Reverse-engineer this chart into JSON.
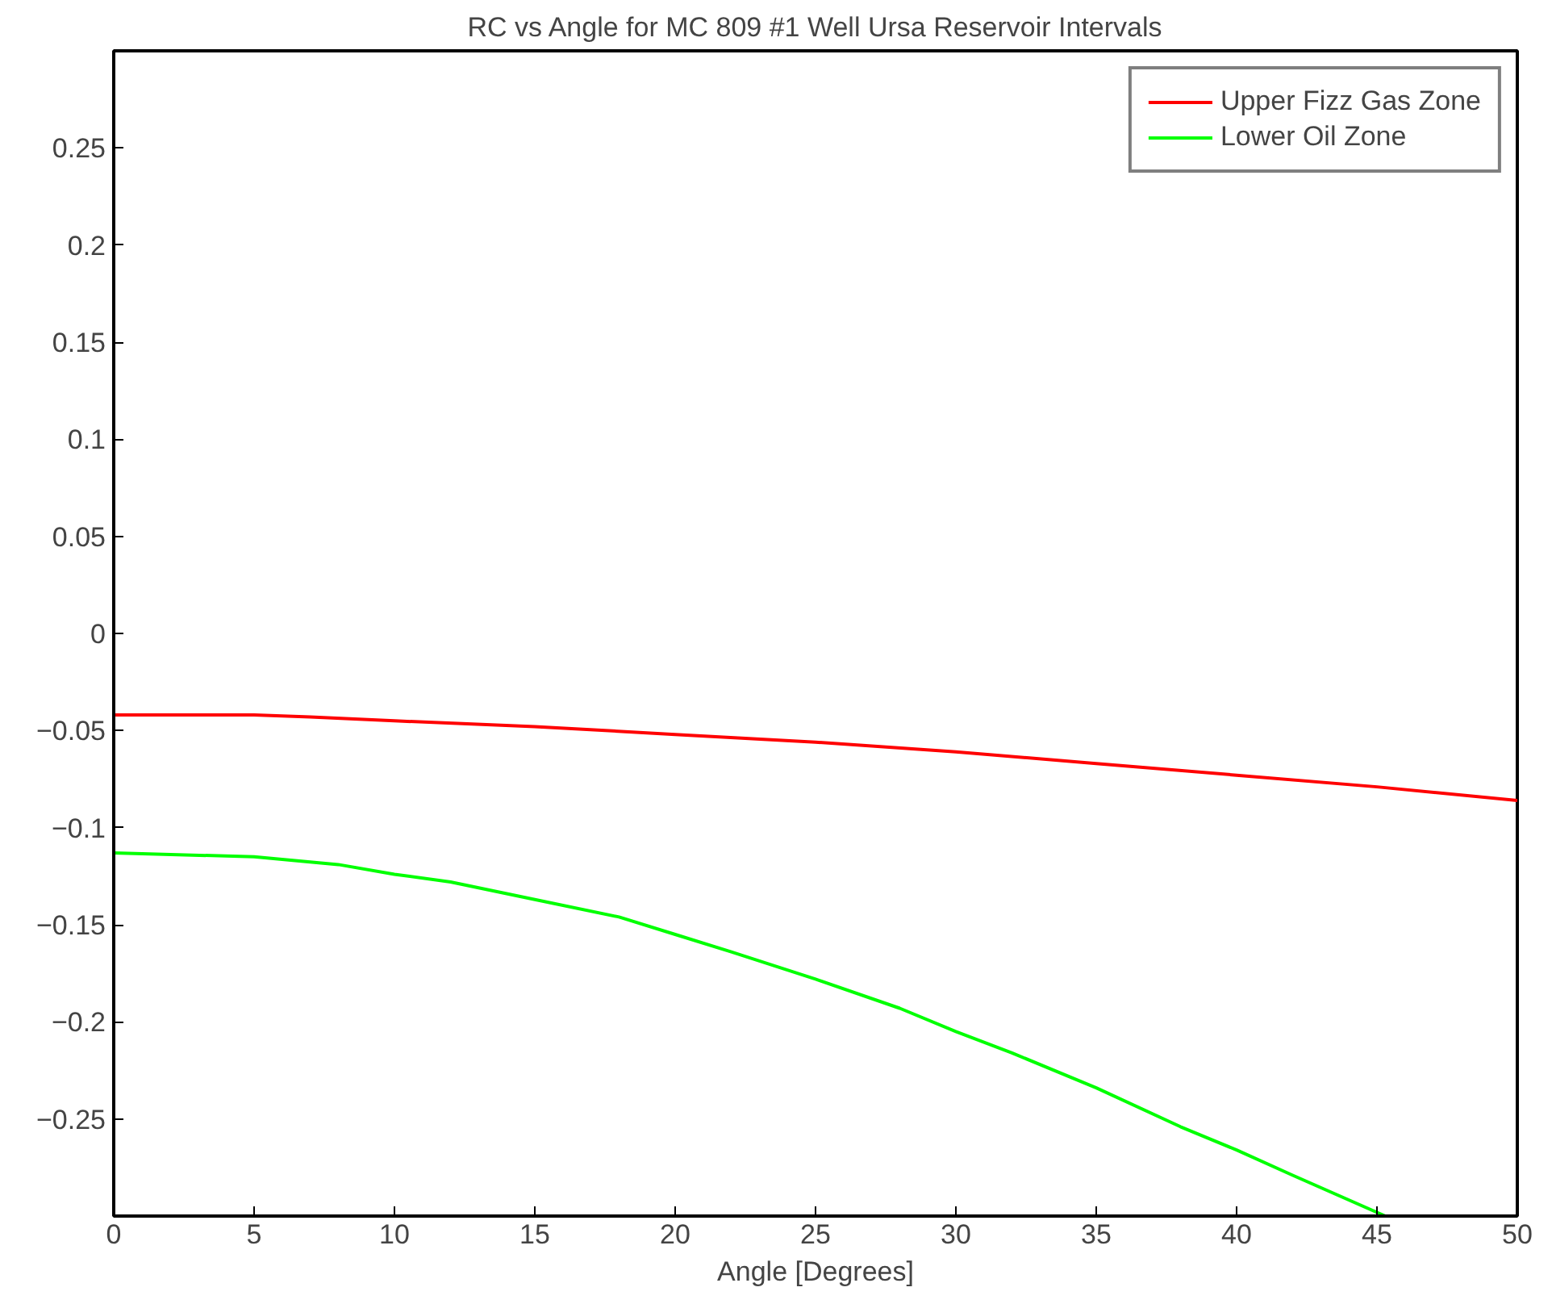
{
  "chart_data": {
    "type": "line",
    "title": "RC vs Angle for MC 809 #1 Well Ursa Reservoir Intervals",
    "xlabel": "Angle [Degrees]",
    "series": [
      {
        "name": "Upper Fizz Gas Zone",
        "color": "#ff0000",
        "x": [
          0,
          5,
          7,
          10,
          15,
          20,
          25,
          30,
          35,
          40,
          45,
          50
        ],
        "values": [
          -0.042,
          -0.042,
          -0.043,
          -0.045,
          -0.048,
          -0.052,
          -0.056,
          -0.061,
          -0.067,
          -0.073,
          -0.079,
          -0.086
        ]
      },
      {
        "name": "Lower Oil Zone",
        "color": "#00ff00",
        "x": [
          0,
          5,
          8,
          10,
          12,
          15,
          18,
          20,
          22,
          25,
          28,
          30,
          32,
          35,
          38,
          40,
          42,
          45.3
        ],
        "values": [
          -0.113,
          -0.115,
          -0.119,
          -0.124,
          -0.128,
          -0.137,
          -0.146,
          -0.155,
          -0.164,
          -0.178,
          -0.193,
          -0.205,
          -0.216,
          -0.234,
          -0.254,
          -0.266,
          -0.279,
          -0.3
        ]
      }
    ],
    "xlim": [
      0,
      50
    ],
    "ylim": [
      -0.3,
      0.3
    ],
    "xticks": [
      0,
      5,
      10,
      15,
      20,
      25,
      30,
      35,
      40,
      45,
      50
    ],
    "yticks": [
      -0.25,
      -0.2,
      -0.15,
      -0.1,
      -0.05,
      0,
      0.05,
      0.1,
      0.15,
      0.2,
      0.25
    ],
    "grid": false,
    "legend": "top right"
  }
}
